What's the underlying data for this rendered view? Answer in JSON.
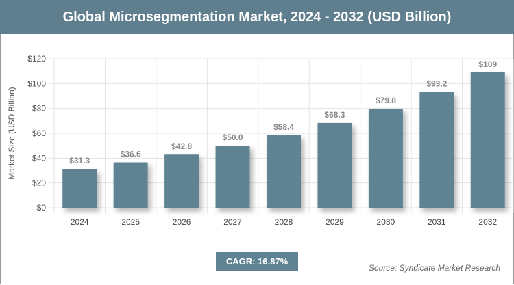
{
  "title": "Global Microsegmentation Market, 2024 - 2032 (USD Billion)",
  "cagr": "CAGR: 16.87%",
  "source": "Source: Syndicate Market Research",
  "chart_data": {
    "type": "bar",
    "title": "Global Microsegmentation Market, 2024 - 2032 (USD Billion)",
    "ylabel": "Market Size (USD Billion)",
    "xlabel": "",
    "categories": [
      "2024",
      "2025",
      "2026",
      "2027",
      "2028",
      "2029",
      "2030",
      "2031",
      "2032"
    ],
    "values": [
      31.3,
      36.6,
      42.8,
      50.0,
      58.4,
      68.3,
      79.8,
      93.2,
      109
    ],
    "data_labels": [
      "$31.3",
      "$36.6",
      "$42.8",
      "$50.0",
      "$58.4",
      "$68.3",
      "$79.8",
      "$93.2",
      "$109"
    ],
    "yticks": [
      "$0",
      "$20",
      "$40",
      "$60",
      "$80",
      "$100",
      "$120"
    ],
    "ylim": [
      0,
      120
    ],
    "grid": true,
    "bar_color": "#5f8393"
  }
}
